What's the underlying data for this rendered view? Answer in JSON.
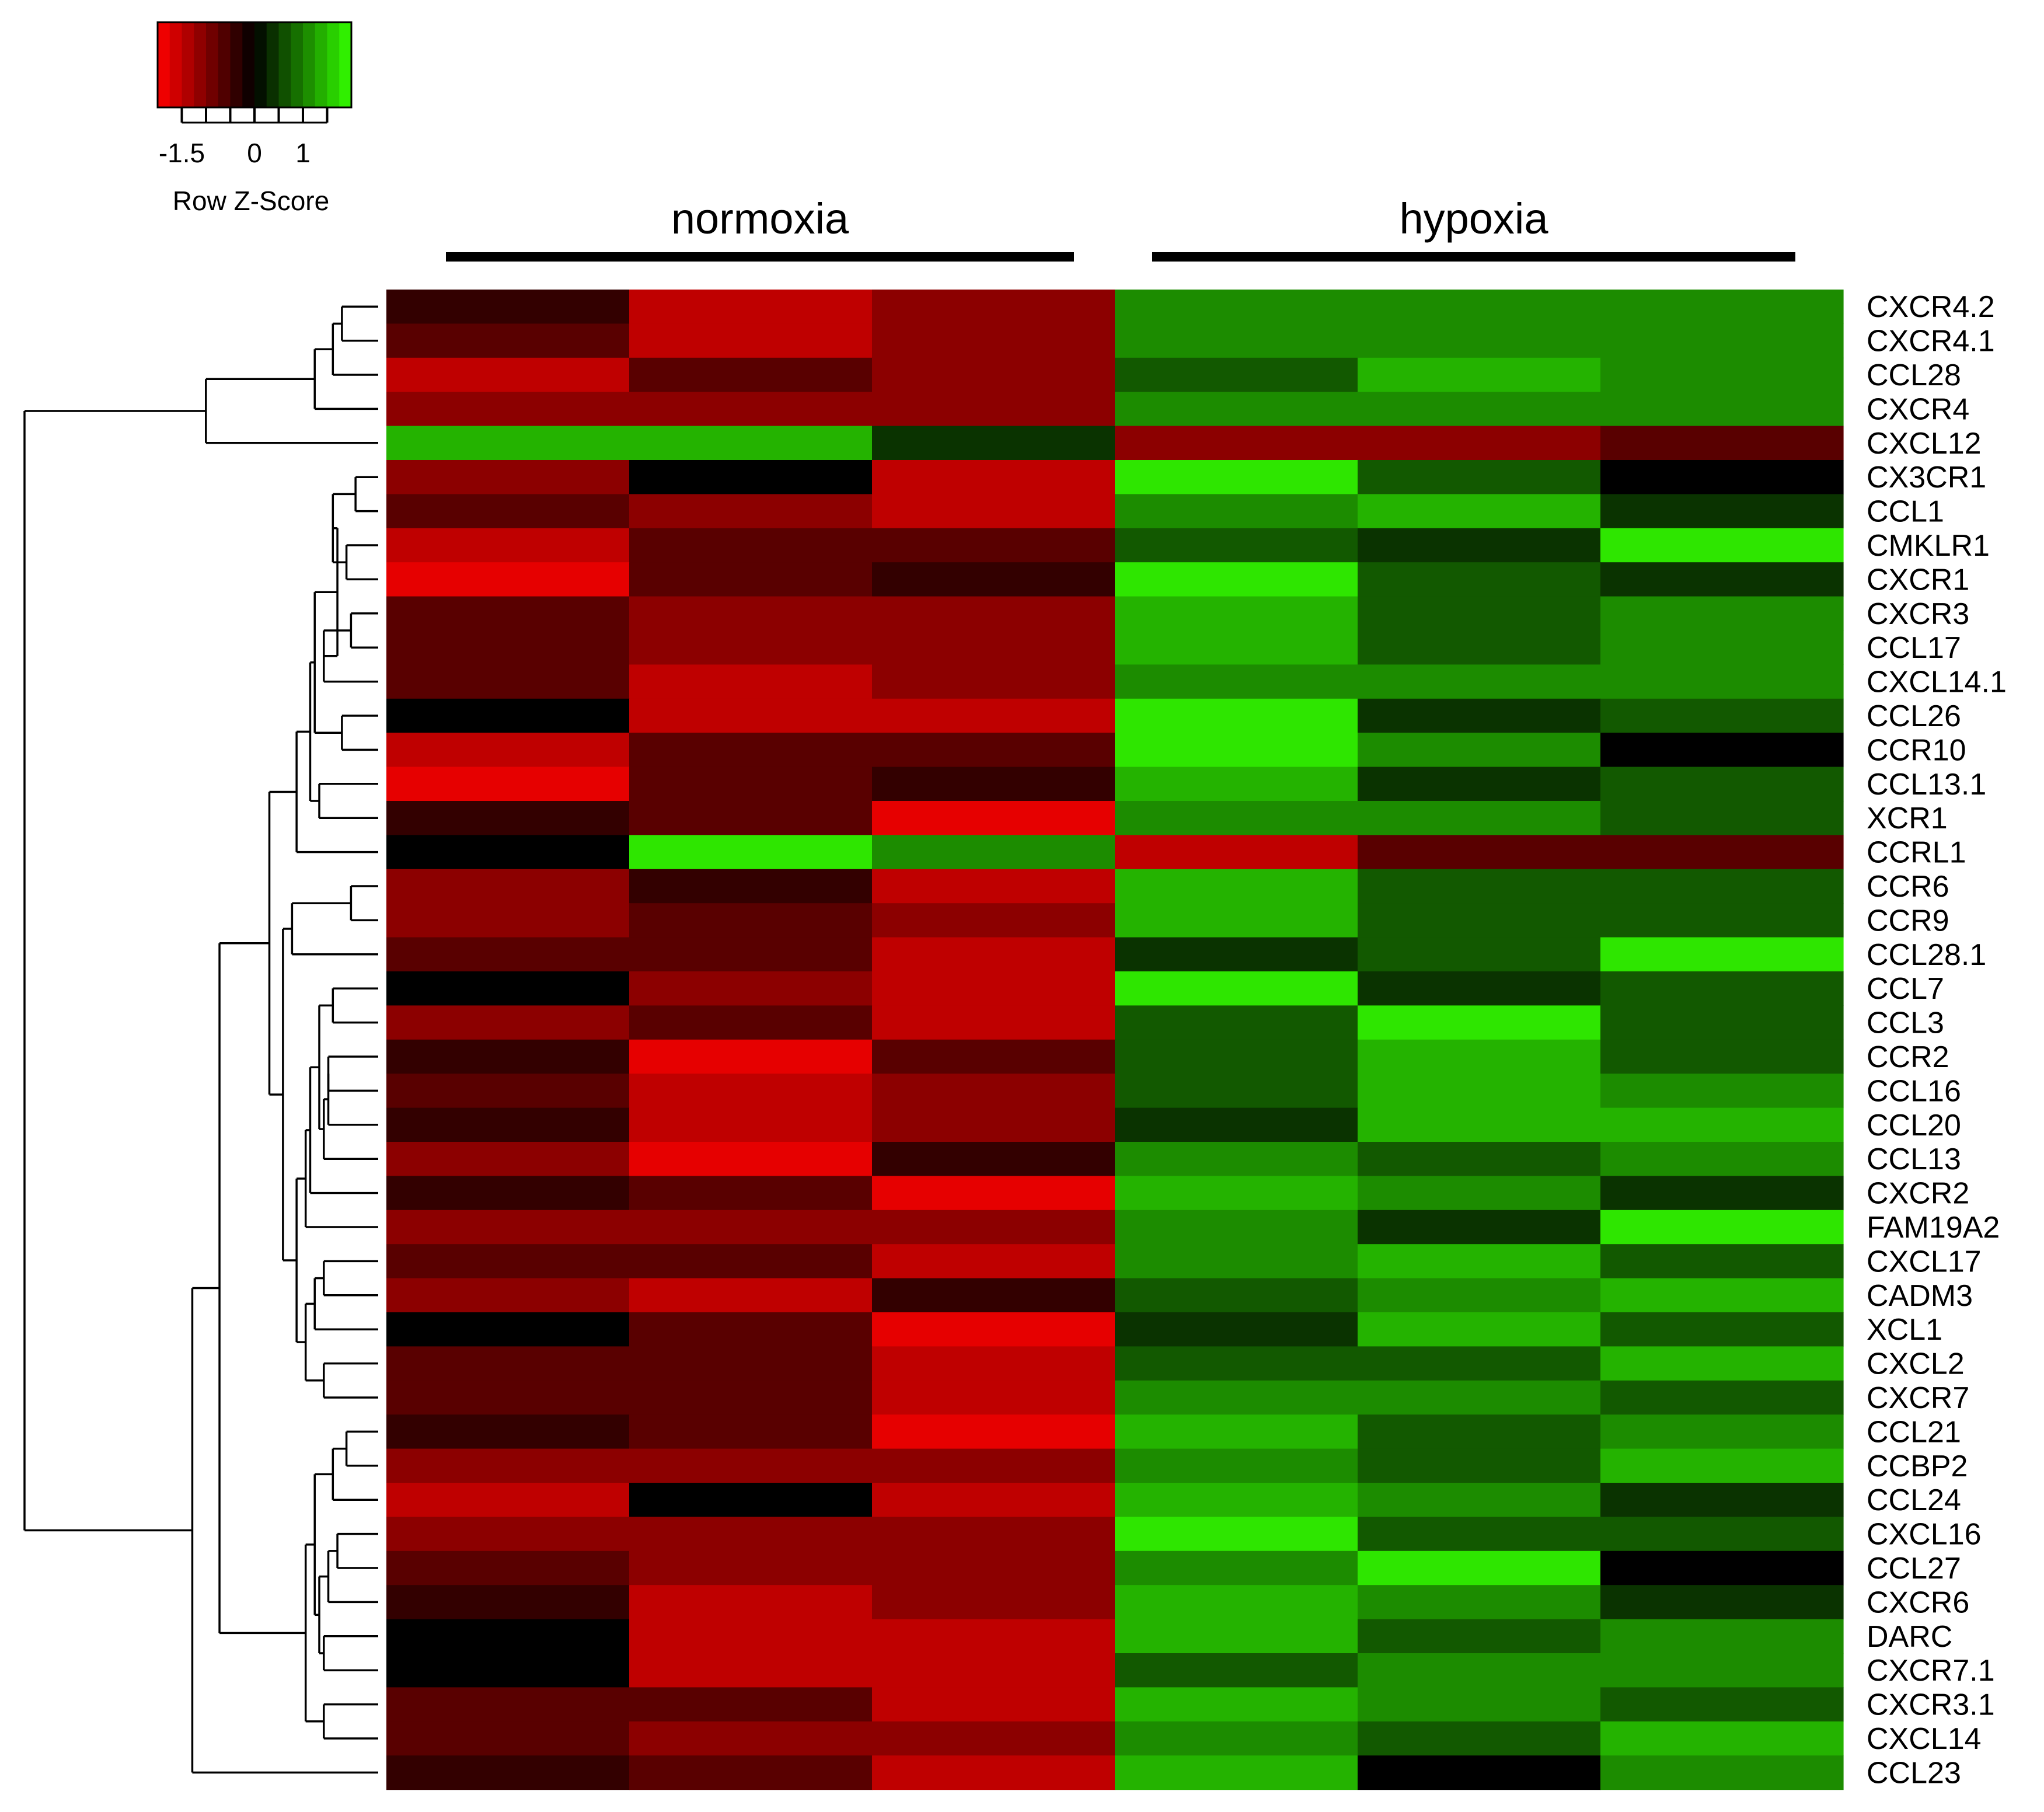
{
  "chart_data": {
    "type": "heatmap",
    "color_key": {
      "title": "Row Z-Score",
      "tick_labels": [
        "-1.5",
        "0",
        "1"
      ],
      "tick_values": [
        -1.5,
        0,
        1
      ],
      "range": [
        -2,
        2
      ],
      "low_color": "#ff0000",
      "mid_color": "#000000",
      "high_color": "#33ff00"
    },
    "groups": [
      {
        "label": "normoxia",
        "columns": [
          0,
          1,
          2
        ]
      },
      {
        "label": "hypoxia",
        "columns": [
          3,
          4,
          5
        ]
      }
    ],
    "rows": [
      "CXCR4.2",
      "CXCR4.1",
      "CCL28",
      "CXCR4",
      "CXCL12",
      "CX3CR1",
      "CCL1",
      "CMKLR1",
      "CXCR1",
      "CXCR3",
      "CCL17",
      "CXCL14.1",
      "CCL26",
      "CCR10",
      "CCL13.1",
      "XCR1",
      "CCRL1",
      "CCR6",
      "CCR9",
      "CCL28.1",
      "CCL7",
      "CCL3",
      "CCR2",
      "CCL16",
      "CCL20",
      "CCL13",
      "CXCR2",
      "FAM19A2",
      "CXCL17",
      "CADM3",
      "XCL1",
      "CXCL2",
      "CXCR7",
      "CCL21",
      "CCBP2",
      "CCL24",
      "CXCL16",
      "CCL27",
      "CXCR6",
      "DARC",
      "CXCR7.1",
      "CXCR3.1",
      "CXCL14",
      "CCL23"
    ],
    "values": [
      [
        -0.4,
        -1.5,
        -1.1,
        1.1,
        1.1,
        1.1
      ],
      [
        -0.7,
        -1.5,
        -1.1,
        1.1,
        1.1,
        1.1
      ],
      [
        -1.5,
        -0.7,
        -1.1,
        0.7,
        1.4,
        1.1
      ],
      [
        -1.1,
        -1.1,
        -1.1,
        1.1,
        1.1,
        1.1
      ],
      [
        1.4,
        1.4,
        0.4,
        -1.1,
        -1.1,
        -0.7
      ],
      [
        -1.1,
        0.0,
        -1.5,
        1.8,
        0.7,
        0.0
      ],
      [
        -0.7,
        -1.1,
        -1.5,
        1.1,
        1.4,
        0.4
      ],
      [
        -1.5,
        -0.7,
        -0.7,
        0.7,
        0.4,
        1.8
      ],
      [
        -1.8,
        -0.7,
        -0.4,
        1.8,
        0.7,
        0.4
      ],
      [
        -0.7,
        -1.1,
        -1.1,
        1.4,
        0.7,
        1.1
      ],
      [
        -0.7,
        -1.1,
        -1.1,
        1.4,
        0.7,
        1.1
      ],
      [
        -0.7,
        -1.5,
        -1.1,
        1.1,
        1.1,
        1.1
      ],
      [
        0.0,
        -1.5,
        -1.5,
        1.8,
        0.4,
        0.7
      ],
      [
        -1.5,
        -0.7,
        -0.7,
        1.8,
        1.1,
        0.0
      ],
      [
        -1.8,
        -0.7,
        -0.4,
        1.4,
        0.4,
        0.7
      ],
      [
        -0.4,
        -0.7,
        -1.8,
        1.1,
        1.1,
        0.7
      ],
      [
        0.0,
        1.8,
        1.1,
        -1.5,
        -0.7,
        -0.7
      ],
      [
        -1.1,
        -0.4,
        -1.5,
        1.4,
        0.7,
        0.7
      ],
      [
        -1.1,
        -0.7,
        -1.1,
        1.4,
        0.7,
        0.7
      ],
      [
        -0.7,
        -0.7,
        -1.5,
        0.4,
        0.7,
        1.8
      ],
      [
        0.0,
        -1.1,
        -1.5,
        1.8,
        0.4,
        0.7
      ],
      [
        -1.1,
        -0.7,
        -1.5,
        0.7,
        1.8,
        0.7
      ],
      [
        -0.4,
        -1.8,
        -0.7,
        0.7,
        1.4,
        0.7
      ],
      [
        -0.7,
        -1.5,
        -1.1,
        0.7,
        1.4,
        1.1
      ],
      [
        -0.4,
        -1.5,
        -1.1,
        0.4,
        1.4,
        1.4
      ],
      [
        -1.1,
        -1.8,
        -0.4,
        1.1,
        0.7,
        1.1
      ],
      [
        -0.4,
        -0.7,
        -1.8,
        1.4,
        1.1,
        0.4
      ],
      [
        -1.1,
        -1.1,
        -1.1,
        1.1,
        0.4,
        1.8
      ],
      [
        -0.7,
        -0.7,
        -1.5,
        1.1,
        1.4,
        0.7
      ],
      [
        -1.1,
        -1.5,
        -0.4,
        0.7,
        1.1,
        1.4
      ],
      [
        0.0,
        -0.7,
        -1.8,
        0.4,
        1.4,
        0.7
      ],
      [
        -0.7,
        -0.7,
        -1.5,
        0.7,
        0.7,
        1.4
      ],
      [
        -0.7,
        -0.7,
        -1.5,
        1.1,
        1.1,
        0.7
      ],
      [
        -0.4,
        -0.7,
        -1.8,
        1.4,
        0.7,
        1.1
      ],
      [
        -1.1,
        -1.1,
        -1.1,
        1.1,
        0.7,
        1.4
      ],
      [
        -1.5,
        0.0,
        -1.5,
        1.4,
        1.1,
        0.4
      ],
      [
        -1.1,
        -1.1,
        -1.1,
        1.8,
        0.7,
        0.7
      ],
      [
        -0.7,
        -1.1,
        -1.1,
        1.1,
        1.8,
        0.0
      ],
      [
        -0.4,
        -1.5,
        -1.1,
        1.4,
        1.1,
        0.4
      ],
      [
        0.0,
        -1.5,
        -1.5,
        1.4,
        0.7,
        1.1
      ],
      [
        0.0,
        -1.5,
        -1.5,
        0.7,
        1.1,
        1.1
      ],
      [
        -0.7,
        -0.7,
        -1.5,
        1.4,
        1.1,
        0.7
      ],
      [
        -0.7,
        -1.1,
        -1.1,
        1.1,
        0.7,
        1.4
      ],
      [
        -0.4,
        -0.7,
        -1.5,
        1.4,
        0.0,
        1.1
      ]
    ],
    "dendrogram": {
      "node_heights": {
        "n1": 0.08,
        "n2": 0.1,
        "n3": 0.14,
        "n4": 0.38,
        "n5": 0.57,
        "t1": 0.05,
        "t2": 0.07,
        "t3": 0.06,
        "t4": 0.1,
        "t5": 0.12,
        "t6": 0.09,
        "t7": 0.08,
        "t8": 0.14,
        "t9": 0.13,
        "t10": 0.15,
        "t11": 0.18,
        "t12": 0.21,
        "t13": 0.24,
        "t14": 0.17,
        "u1": 0.06,
        "u2": 0.19,
        "u3": 0.1,
        "u4": 0.11,
        "u5": 0.11,
        "u6": 0.12,
        "u7": 0.13,
        "u8": 0.15,
        "u9": 0.16,
        "u10": 0.16,
        "u11": 0.12,
        "u12": 0.12,
        "u13": 0.14,
        "u14": 0.16,
        "u15": 0.18,
        "v1": 0.07,
        "v2": 0.1,
        "v3": 0.09,
        "v4": 0.11,
        "v5": 0.12,
        "v6": 0.13,
        "v7": 0.14,
        "v8": 0.12,
        "v9": 0.16,
        "v10": 0.17,
        "u16": 0.21,
        "u17": 0.23,
        "c1": 0.27,
        "c2": 0.29,
        "c3": 0.35,
        "c4": 0.41,
        "root": 0.78
      }
    }
  }
}
